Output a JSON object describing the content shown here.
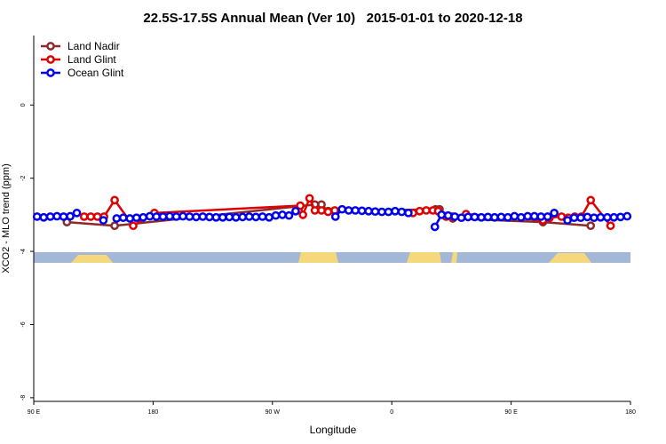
{
  "chart_data": {
    "type": "line",
    "title": "22.5S-17.5S Annual Mean (Ver 10)   2015-01-01 to 2020-12-18",
    "x_label": "Longitude",
    "y_label": "XCO2 - MLO trend (ppm)",
    "xlim": [
      90,
      540
    ],
    "xticks": [
      {
        "value": 90,
        "label": "90 E"
      },
      180,
      {
        "value": 270,
        "label": "90 W"
      },
      {
        "value": 360,
        "label": "0"
      },
      {
        "value": 450,
        "label": "90 E"
      },
      {
        "value": 540,
        "label": "180"
      }
    ],
    "ylim": [
      -8.1,
      1.9
    ],
    "yticks": [
      0,
      -2,
      -4,
      -6,
      -8
    ],
    "legend": "top-left",
    "series": [
      {
        "name": "Land Nadir",
        "color": "#8b2b2b",
        "x": [
          115,
          151,
          302,
          307,
          312,
          393,
          396,
          406,
          474,
          510
        ],
        "values": [
          -3.2,
          -3.3,
          -2.72,
          -2.72,
          -2.9,
          -2.85,
          -2.85,
          -3.1,
          -3.2,
          -3.3
        ]
      },
      {
        "name": "Land Glint",
        "color": "#e00000",
        "x": [
          128,
          133,
          138,
          143,
          151,
          165,
          181,
          291,
          293,
          298,
          302,
          307,
          312,
          317,
          376,
          381,
          386,
          391,
          395,
          401,
          406,
          416,
          474,
          479,
          488,
          493,
          498,
          503,
          510,
          525
        ],
        "values": [
          -3.05,
          -3.05,
          -3.05,
          -3.05,
          -2.6,
          -3.3,
          -2.95,
          -2.75,
          -3.0,
          -2.55,
          -2.88,
          -2.88,
          -2.92,
          -2.88,
          -2.95,
          -2.9,
          -2.88,
          -2.88,
          -2.9,
          -3.05,
          -3.05,
          -2.98,
          -3.15,
          -3.08,
          -3.05,
          -3.08,
          -3.05,
          -3.05,
          -2.6,
          -3.3
        ]
      },
      {
        "name": "Ocean Glint",
        "color": "#0000ee",
        "x": [
          92.5,
          97.5,
          102.5,
          107.5,
          112.5,
          117.5,
          122.5,
          127.5,
          132.5,
          137.5,
          142.5,
          147.5,
          152.5,
          157.5,
          162.5,
          167.5,
          172.5,
          177.5,
          182.5,
          187.5,
          192.5,
          197.5,
          202.5,
          207.5,
          212.5,
          217.5,
          222.5,
          227.5,
          232.5,
          237.5,
          242.5,
          247.5,
          252.5,
          257.5,
          262.5,
          267.5,
          272.5,
          277.5,
          282.5,
          287.5,
          292.5,
          297.5,
          302.5,
          307.5,
          312.5,
          317.5,
          322.5,
          327.5,
          332.5,
          337.5,
          342.5,
          347.5,
          352.5,
          357.5,
          362.5,
          367.5,
          372.5,
          377.5,
          382.5,
          387.5,
          392.5,
          397.5,
          402.5,
          407.5,
          412.5,
          417.5,
          422.5,
          427.5,
          432.5,
          437.5,
          442.5,
          447.5,
          452.5,
          457.5,
          462.5,
          467.5,
          472.5,
          477.5,
          482.5,
          487.5,
          492.5,
          497.5,
          502.5,
          507.5,
          512.5,
          517.5,
          522.5,
          527.5,
          532.5,
          537.5
        ],
        "values": [
          -3.05,
          -3.07,
          -3.05,
          -3.04,
          -3.05,
          -3.04,
          -2.95,
          null,
          null,
          null,
          -3.15,
          null,
          -3.1,
          -3.08,
          -3.1,
          -3.08,
          -3.07,
          -3.04,
          -3.05,
          -3.05,
          -3.04,
          -3.05,
          -3.04,
          -3.05,
          -3.06,
          -3.05,
          -3.06,
          -3.07,
          -3.07,
          -3.06,
          -3.07,
          -3.06,
          -3.05,
          -3.06,
          -3.05,
          -3.07,
          -3.02,
          -3.0,
          -3.02,
          -2.9,
          null,
          null,
          null,
          null,
          null,
          -3.05,
          -2.85,
          -2.88,
          -2.88,
          -2.89,
          -2.9,
          -2.91,
          -2.92,
          -2.92,
          -2.9,
          -2.92,
          -2.95,
          null,
          null,
          null,
          -3.33,
          -3.0,
          -3.02,
          -3.05,
          -3.08,
          -3.06,
          -3.06,
          -3.07,
          -3.06,
          -3.07,
          -3.06,
          -3.07,
          -3.04,
          -3.07,
          -3.04,
          -3.04,
          -3.05,
          -3.05,
          -2.95,
          null,
          -3.15,
          -3.08,
          -3.08,
          -3.06,
          -3.08,
          -3.07,
          -3.07,
          -3.07,
          -3.06,
          -3.04
        ]
      }
    ]
  }
}
